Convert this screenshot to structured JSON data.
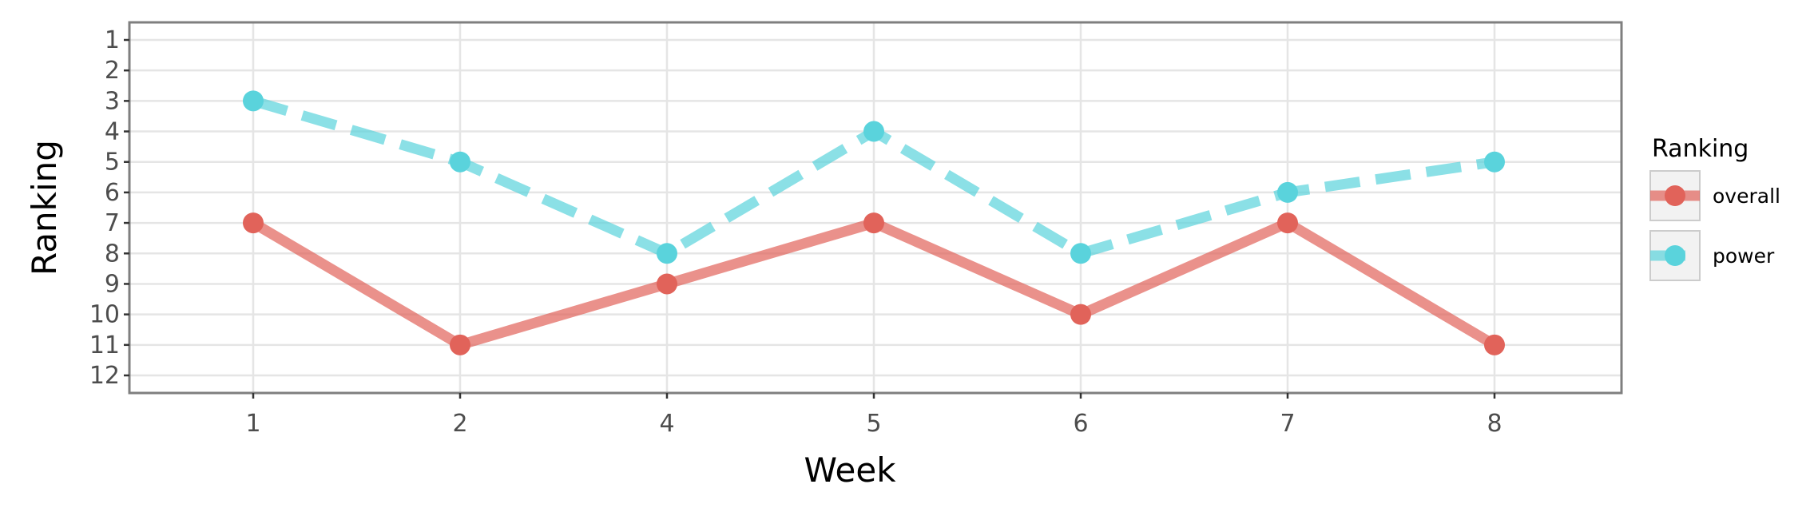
{
  "chart_data": {
    "type": "line",
    "xlabel": "Week",
    "ylabel": "Ranking",
    "categories": [
      "1",
      "2",
      "4",
      "5",
      "6",
      "7",
      "8"
    ],
    "y_ticks": [
      "1",
      "2",
      "3",
      "4",
      "5",
      "6",
      "7",
      "8",
      "9",
      "10",
      "11",
      "12"
    ],
    "ylim": [
      12.5,
      0.5
    ],
    "y_reversed": true,
    "grid": true,
    "legend": {
      "title": "Ranking",
      "placement": "right"
    },
    "series": [
      {
        "name": "overall",
        "values": [
          7,
          11,
          9,
          7,
          10,
          7,
          11
        ],
        "color": "#E1635A",
        "line_style": "solid"
      },
      {
        "name": "power",
        "values": [
          3,
          5,
          8,
          4,
          8,
          6,
          5
        ],
        "color": "#5AD3DC",
        "line_style": "dashed"
      }
    ]
  }
}
